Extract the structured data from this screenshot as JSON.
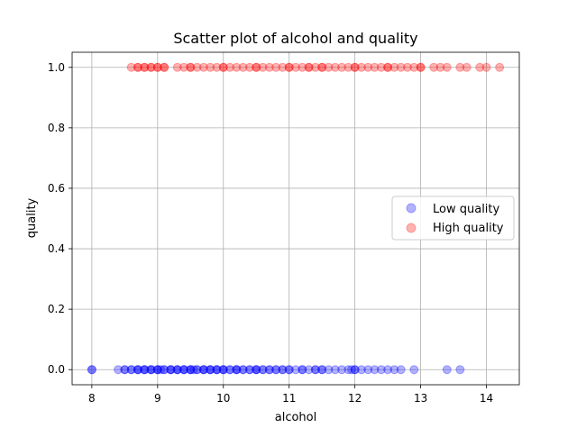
{
  "chart_data": {
    "type": "scatter",
    "title": "Scatter plot of alcohol and quality",
    "xlabel": "alcohol",
    "ylabel": "quality",
    "xlim": [
      7.7,
      14.5
    ],
    "ylim": [
      -0.05,
      1.05
    ],
    "xticks": [
      8,
      9,
      10,
      11,
      12,
      13,
      14
    ],
    "yticks": [
      0.0,
      0.2,
      0.4,
      0.6,
      0.8,
      1.0
    ],
    "xtick_labels": [
      "8",
      "9",
      "10",
      "11",
      "12",
      "13",
      "14"
    ],
    "ytick_labels": [
      "0.0",
      "0.2",
      "0.4",
      "0.6",
      "0.8",
      "1.0"
    ],
    "grid": true,
    "legend_position": "center-right",
    "series": [
      {
        "name": "Low quality",
        "color": "#0000ff",
        "alpha": 0.3,
        "y": 0,
        "x": [
          8.0,
          8.0,
          8.4,
          8.5,
          8.5,
          8.6,
          8.6,
          8.7,
          8.7,
          8.7,
          8.8,
          8.8,
          8.8,
          8.9,
          8.9,
          8.9,
          9.0,
          9.0,
          9.0,
          9.05,
          9.1,
          9.1,
          9.2,
          9.2,
          9.2,
          9.3,
          9.3,
          9.3,
          9.4,
          9.4,
          9.4,
          9.5,
          9.5,
          9.5,
          9.55,
          9.6,
          9.6,
          9.7,
          9.7,
          9.7,
          9.8,
          9.8,
          9.8,
          9.9,
          9.9,
          9.9,
          10.0,
          10.0,
          10.0,
          10.1,
          10.1,
          10.2,
          10.2,
          10.2,
          10.3,
          10.3,
          10.4,
          10.4,
          10.5,
          10.5,
          10.5,
          10.6,
          10.6,
          10.7,
          10.7,
          10.8,
          10.8,
          10.9,
          10.9,
          11.0,
          11.0,
          11.1,
          11.2,
          11.2,
          11.3,
          11.4,
          11.4,
          11.5,
          11.5,
          11.6,
          11.7,
          11.8,
          11.9,
          11.95,
          12.0,
          12.0,
          12.1,
          12.2,
          12.3,
          12.4,
          12.5,
          12.6,
          12.7,
          12.9,
          13.4,
          13.6
        ]
      },
      {
        "name": "High quality",
        "color": "#ff0000",
        "alpha": 0.3,
        "y": 1,
        "x": [
          8.6,
          8.7,
          8.7,
          8.8,
          8.8,
          8.9,
          8.9,
          9.0,
          9.0,
          9.1,
          9.1,
          9.3,
          9.4,
          9.5,
          9.5,
          9.6,
          9.7,
          9.8,
          9.9,
          10.0,
          10.0,
          10.1,
          10.2,
          10.3,
          10.4,
          10.5,
          10.5,
          10.6,
          10.7,
          10.8,
          10.9,
          11.0,
          11.0,
          11.1,
          11.2,
          11.3,
          11.3,
          11.4,
          11.5,
          11.5,
          11.6,
          11.7,
          11.8,
          11.9,
          12.0,
          12.0,
          12.1,
          12.2,
          12.3,
          12.4,
          12.5,
          12.5,
          12.6,
          12.7,
          12.8,
          12.9,
          13.0,
          13.0,
          13.2,
          13.3,
          13.4,
          13.6,
          13.7,
          13.9,
          14.0,
          14.2
        ]
      }
    ]
  }
}
